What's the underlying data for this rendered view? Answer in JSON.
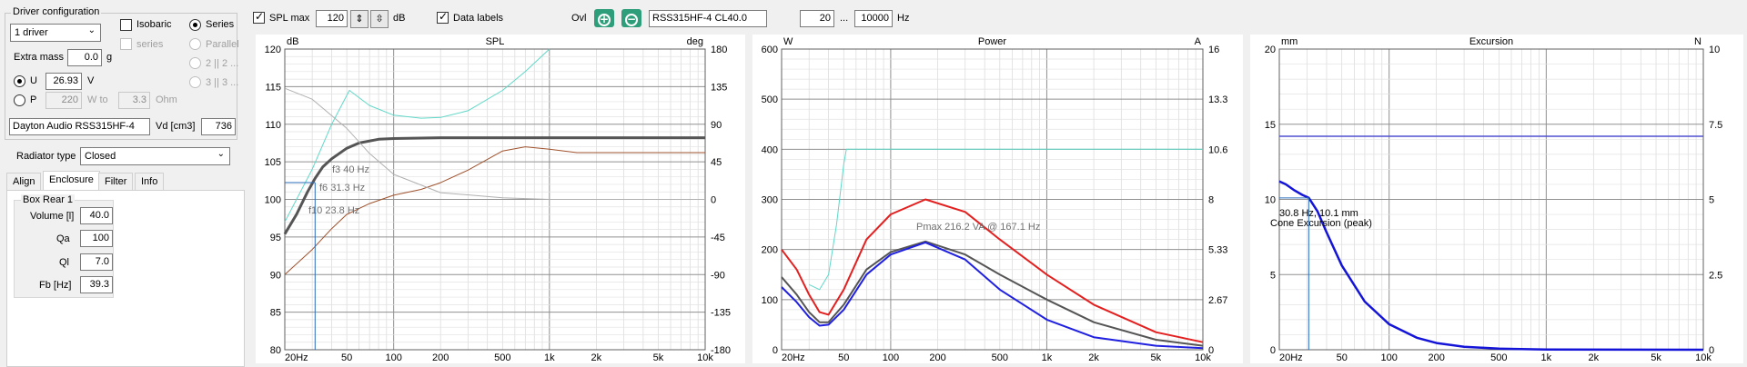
{
  "driver_config": {
    "title": "Driver configuration",
    "drivers_select": "1 driver",
    "isobaric_label": "Isobaric",
    "series_label": "Series",
    "series_sub_label": "series",
    "parallel_label": "Parallel",
    "opt_2_2": "2 || 2 ...",
    "opt_3_3": "3 || 3 ...",
    "extra_mass_label": "Extra mass",
    "extra_mass_value": "0.0",
    "extra_mass_unit": "g",
    "u_label": "U",
    "u_value": "26.93",
    "u_unit": "V",
    "p_label": "P",
    "p_value": "220",
    "w_to_label": "W to",
    "ohm_value": "3.3",
    "ohm_unit": "Ohm",
    "driver_name": "Dayton Audio RSS315HF-4",
    "vd_label": "Vd [cm3]",
    "vd_value": "736"
  },
  "radiator": {
    "label": "Radiator type",
    "value": "Closed"
  },
  "tabs": [
    "Align",
    "Enclosure",
    "Filter",
    "Info"
  ],
  "box": {
    "title": "Box Rear 1",
    "fields": [
      {
        "label": "Volume [l]",
        "value": "40.0"
      },
      {
        "label": "Qa",
        "value": "100"
      },
      {
        "label": "Ql",
        "value": "7.0"
      },
      {
        "label": "Fb [Hz]",
        "value": "39.3"
      }
    ]
  },
  "toolbar": {
    "spl_max_label": "SPL max",
    "spl_max_value": "120",
    "spl_unit": "dB",
    "data_labels_label": "Data labels",
    "ovl_label": "Ovl",
    "ovl_name": "RSS315HF-4 CL40.0",
    "freq_from": "20",
    "range_sep": "...",
    "freq_to": "10000",
    "freq_unit": "Hz"
  },
  "x_ticks": [
    "20Hz",
    "50",
    "100",
    "200",
    "500",
    "1k",
    "2k",
    "5k",
    "10k"
  ],
  "colors": {
    "spl": "#555555",
    "phase": "#a0522d",
    "gd": "#b0b0b0",
    "impulse": "#5fd8c8",
    "red": "#e32020",
    "blue": "#2020e0",
    "excursion": "#1414d8",
    "limit": "#5050d0"
  },
  "chart_data": [
    {
      "type": "line",
      "title": "SPL",
      "y_unit_left": "dB",
      "y_unit_right": "deg",
      "x_scale": "log",
      "xlim": [
        20,
        10000
      ],
      "ylim": [
        80,
        120
      ],
      "y2lim": [
        -180,
        180
      ],
      "yticks": [
        "120",
        "115",
        "110",
        "105",
        "100",
        "95",
        "90",
        "85",
        "80"
      ],
      "y2ticks": [
        "180",
        "135",
        "90",
        "45",
        "0",
        "-45",
        "-90",
        "-135",
        "-180"
      ],
      "annotations": [
        "f3 40 Hz",
        "f6 31.3 Hz",
        "f10 23.8 Hz"
      ],
      "series": [
        {
          "name": "SPL",
          "x": [
            20,
            23.8,
            28,
            31.3,
            35,
            40,
            50,
            60,
            80,
            100,
            200,
            500,
            1000,
            10000
          ],
          "y": [
            95.4,
            98,
            101,
            102.8,
            104.3,
            105.4,
            106.8,
            107.5,
            108,
            108.1,
            108.2,
            108.2,
            108.2,
            108.2
          ]
        },
        {
          "x": [
            20,
            30,
            40,
            50,
            70,
            100,
            150,
            200,
            300,
            500,
            700,
            1000,
            1500,
            2000,
            10000
          ],
          "y2": [
            -90,
            -60,
            -35,
            -18,
            -5,
            5,
            12,
            20,
            35,
            58,
            63,
            60,
            56,
            56,
            56
          ]
        },
        {
          "x": [
            20,
            30,
            50,
            70,
            100,
            200,
            500,
            1000,
            10000
          ],
          "y2": [
            133,
            120,
            85,
            55,
            30,
            8,
            2,
            0,
            0
          ]
        },
        {
          "x": [
            20,
            30,
            40,
            52,
            70,
            100,
            150,
            200,
            300,
            500,
            700,
            1000
          ],
          "y": [
            97,
            104,
            110,
            114.5,
            112.5,
            111.2,
            110.8,
            110.9,
            111.8,
            114.5,
            117,
            120
          ]
        }
      ]
    },
    {
      "type": "line",
      "title": "Power",
      "y_unit_left": "W",
      "y_unit_right": "A",
      "x_scale": "log",
      "xlim": [
        20,
        10000
      ],
      "ylim": [
        0,
        600
      ],
      "y2lim": [
        0,
        16
      ],
      "yticks": [
        "600",
        "500",
        "400",
        "300",
        "200",
        "100",
        "0"
      ],
      "y2ticks": [
        "16",
        "13.3",
        "10.6",
        "8",
        "5.33",
        "2.67",
        "0"
      ],
      "annotations": [
        "Pmax 216.2 VA  @ 167.1 Hz"
      ],
      "series": [
        {
          "x": [
            20,
            25,
            30,
            35,
            40,
            50,
            70,
            100,
            167,
            300,
            500,
            1000,
            2000,
            5000,
            10000
          ],
          "y": [
            200,
            160,
            110,
            75,
            70,
            120,
            220,
            270,
            300,
            275,
            220,
            150,
            90,
            35,
            15
          ]
        },
        {
          "x": [
            20,
            25,
            30,
            35,
            40,
            50,
            70,
            100,
            167,
            300,
            500,
            1000,
            2000,
            5000,
            10000
          ],
          "y": [
            145,
            110,
            75,
            55,
            55,
            90,
            160,
            195,
            216,
            190,
            150,
            100,
            55,
            20,
            8
          ]
        },
        {
          "x": [
            20,
            25,
            30,
            35,
            40,
            50,
            70,
            100,
            167,
            300,
            500,
            1000,
            2000,
            5000,
            10000
          ],
          "y": [
            125,
            95,
            65,
            48,
            50,
            80,
            150,
            190,
            214,
            180,
            120,
            60,
            25,
            8,
            3
          ]
        },
        {
          "x": [
            30,
            35,
            40,
            45,
            50,
            52,
            10000
          ],
          "y": [
            130,
            120,
            150,
            250,
            370,
            400,
            400
          ]
        }
      ]
    },
    {
      "type": "line",
      "title": "Excursion",
      "y_unit_left": "mm",
      "y_unit_right": "N",
      "x_scale": "log",
      "xlim": [
        20,
        10000
      ],
      "ylim": [
        0,
        20
      ],
      "y2lim": [
        0,
        10
      ],
      "yticks": [
        "20",
        "15",
        "10",
        "5",
        "0"
      ],
      "y2ticks": [
        "10",
        "7.5",
        "5",
        "2.5",
        "0"
      ],
      "annotations": [
        "30.8 Hz, 10.1 mm",
        "Cone Excursion (peak)"
      ],
      "series": [
        {
          "x": [
            20,
            22,
            25,
            28,
            30.8,
            35,
            40,
            50,
            70,
            100,
            150,
            200,
            300,
            500,
            1000,
            10000
          ],
          "y": [
            11.2,
            11.0,
            10.6,
            10.3,
            10.1,
            9.2,
            7.8,
            5.6,
            3.2,
            1.7,
            0.8,
            0.45,
            0.2,
            0.07,
            0.02,
            0
          ]
        },
        {
          "x": [
            20,
            10000
          ],
          "y": [
            14.2,
            14.2
          ]
        }
      ]
    }
  ]
}
